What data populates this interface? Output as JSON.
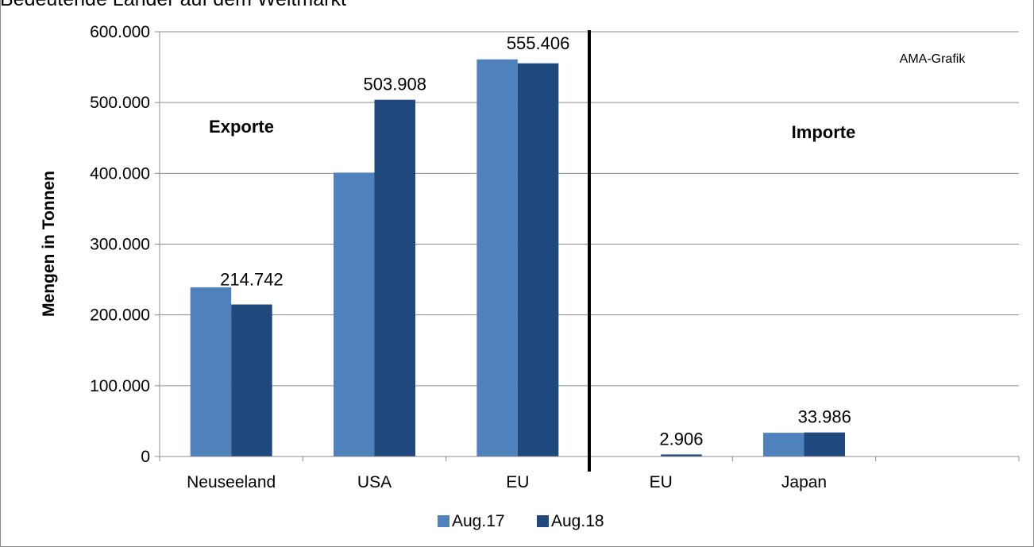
{
  "chart_data": {
    "type": "bar",
    "title": "Bedeutende Länder auf dem Weltmarkt",
    "ylabel": "Mengen in Tonnen",
    "xlabel": "",
    "ylim": [
      0,
      600000
    ],
    "yticks": [
      "0",
      "100.000",
      "200.000",
      "300.000",
      "400.000",
      "500.000",
      "600.000"
    ],
    "grid": true,
    "legend_position": "bottom",
    "categories": [
      "Neuseeland",
      "USA",
      "EU",
      "EU",
      "Japan",
      ""
    ],
    "series": [
      {
        "name": "Aug.17",
        "color": "#4f81bd",
        "values": [
          239000,
          401000,
          561000,
          0,
          33500,
          null
        ]
      },
      {
        "name": "Aug.18",
        "color": "#1f497d",
        "values": [
          214742,
          503908,
          555406,
          2906,
          33986,
          null
        ]
      }
    ],
    "data_labels": [
      "214.742",
      "503.908",
      "555.406",
      "2.906",
      "33.986",
      ""
    ],
    "annotations": {
      "exports": "Exporte",
      "imports": "Importe",
      "credit": "AMA-Grafik"
    }
  }
}
